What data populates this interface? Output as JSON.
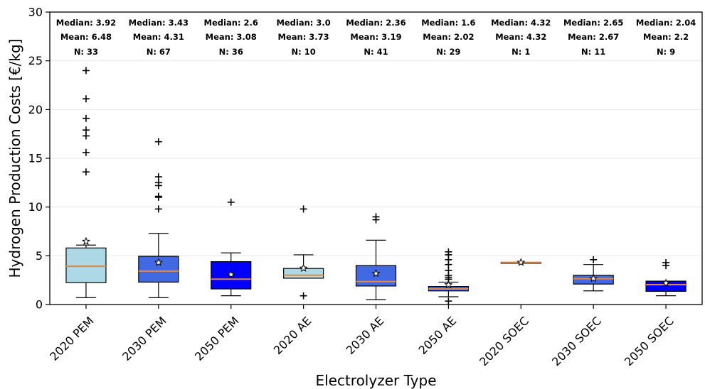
{
  "chart_data": {
    "type": "box",
    "xlabel": "Electrolyzer Type",
    "ylabel": "Hydrogen Production Costs [€/kg]",
    "ylim": [
      0,
      30
    ],
    "yticks": [
      0,
      5,
      10,
      15,
      20,
      25,
      30
    ],
    "grid": "horizontal",
    "categories": [
      "2020 PEM",
      "2030 PEM",
      "2050 PEM",
      "2020 AE",
      "2030 AE",
      "2050 AE",
      "2020 SOEC",
      "2030 SOEC",
      "2050 SOEC"
    ],
    "annotations": [
      {
        "median": "Median: 3.92",
        "mean": "Mean: 6.48",
        "n": "N: 33"
      },
      {
        "median": "Median: 3.43",
        "mean": "Mean: 4.31",
        "n": "N: 67"
      },
      {
        "median": "Median: 2.6",
        "mean": "Mean: 3.08",
        "n": "N: 36"
      },
      {
        "median": "Median: 3.0",
        "mean": "Mean: 3.73",
        "n": "N: 10"
      },
      {
        "median": "Median: 2.36",
        "mean": "Mean: 3.19",
        "n": "N: 41"
      },
      {
        "median": "Median: 1.6",
        "mean": "Mean: 2.02",
        "n": "N: 29"
      },
      {
        "median": "Median: 4.32",
        "mean": "Mean: 4.32",
        "n": "N: 1"
      },
      {
        "median": "Median: 2.65",
        "mean": "Mean: 2.67",
        "n": "N: 11"
      },
      {
        "median": "Median: 2.04",
        "mean": "Mean: 2.2",
        "n": "N: 9"
      }
    ],
    "boxes": [
      {
        "whisker_low": 0.7,
        "q1": 2.25,
        "median": 3.92,
        "q3": 5.8,
        "whisker_high": 6.1,
        "mean": 6.48,
        "outliers": [
          24.0,
          21.1,
          19.1,
          17.9,
          17.3,
          15.6,
          13.6
        ],
        "fill": "#add8e6"
      },
      {
        "whisker_low": 0.7,
        "q1": 2.3,
        "median": 3.43,
        "q3": 4.95,
        "whisker_high": 7.3,
        "mean": 4.31,
        "outliers": [
          16.7,
          13.1,
          12.5,
          12.2,
          11.1,
          11.0,
          9.8
        ],
        "fill": "#4169e1"
      },
      {
        "whisker_low": 0.9,
        "q1": 1.6,
        "median": 2.6,
        "q3": 4.4,
        "whisker_high": 5.3,
        "mean": 3.08,
        "outliers": [
          10.5
        ],
        "fill": "#0000ff"
      },
      {
        "whisker_low": 2.7,
        "q1": 2.7,
        "median": 3.0,
        "q3": 3.7,
        "whisker_high": 5.1,
        "mean": 3.73,
        "outliers": [
          9.8,
          0.9
        ],
        "fill": "#add8e6"
      },
      {
        "whisker_low": 0.5,
        "q1": 1.9,
        "median": 2.36,
        "q3": 4.0,
        "whisker_high": 6.6,
        "mean": 3.19,
        "outliers": [
          9.0,
          8.7
        ],
        "fill": "#4169e1"
      },
      {
        "whisker_low": 0.8,
        "q1": 1.4,
        "median": 1.6,
        "q3": 1.85,
        "whisker_high": 2.3,
        "mean": 2.02,
        "outliers": [
          5.4,
          5.1,
          4.6,
          4.1,
          3.5,
          3.0,
          2.8,
          2.6,
          0.35
        ],
        "fill": "#4169e1"
      },
      {
        "whisker_low": 4.32,
        "q1": 4.32,
        "median": 4.32,
        "q3": 4.32,
        "whisker_high": 4.32,
        "mean": 4.32,
        "outliers": [],
        "fill": "#add8e6"
      },
      {
        "whisker_low": 1.4,
        "q1": 2.1,
        "median": 2.65,
        "q3": 3.0,
        "whisker_high": 4.1,
        "mean": 2.67,
        "outliers": [
          4.6
        ],
        "fill": "#4169e1"
      },
      {
        "whisker_low": 0.9,
        "q1": 1.35,
        "median": 2.04,
        "q3": 2.4,
        "whisker_high": 2.4,
        "mean": 2.2,
        "outliers": [
          4.3,
          4.0
        ],
        "fill": "#0000ff"
      }
    ],
    "colors": {
      "median_line": "#e08a3c",
      "grid": "#e6e6e6",
      "axis": "#000000",
      "mean_marker": "#ffffff"
    }
  }
}
